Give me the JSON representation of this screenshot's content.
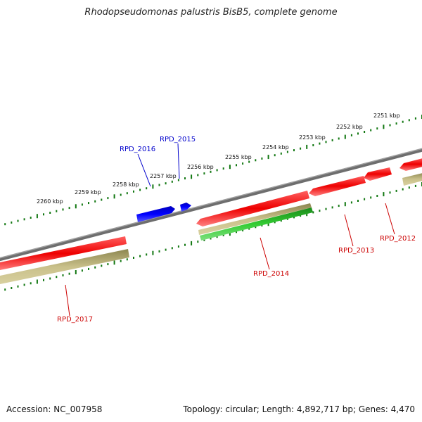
{
  "title": "Rhodopseudomonas palustris BisB5, complete genome",
  "accession": "Accession: NC_007958",
  "summary": "Topology: circular; Length: 4,892,717 bp; Genes: 4,470",
  "colors": {
    "backbone": "#7f7f7f",
    "ticks": "#117711",
    "cds": "#ee0000",
    "gene": "#b8b07a",
    "rna": "#22bb22",
    "upper_gene": "#0000ee",
    "label_red": "#cc0000",
    "label_blue": "#0000cc"
  },
  "scale_labels": [
    "2251 kbp",
    "2252 kbp",
    "2253 kbp",
    "2254 kbp",
    "2255 kbp",
    "2256 kbp",
    "2257 kbp",
    "2258 kbp",
    "2259 kbp",
    "2260 kbp"
  ],
  "gene_labels": {
    "rpd2012": "RPD_2012",
    "rpd2013": "RPD_2013",
    "rpd2014": "RPD_2014",
    "rpd2015": "RPD_2015",
    "rpd2016": "RPD_2016",
    "rpd2017": "RPD_2017"
  }
}
